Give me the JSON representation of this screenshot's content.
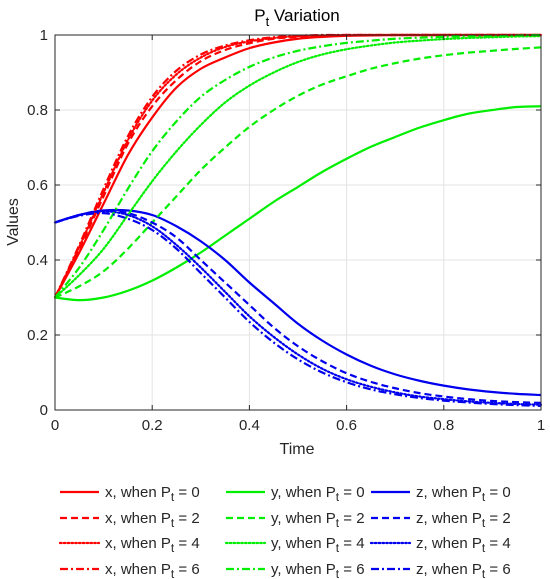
{
  "chart_data": {
    "type": "line",
    "title": {
      "main": "P",
      "sub": "t",
      "rest": " Variation"
    },
    "xlabel": "Time",
    "ylabel": "Values",
    "xlim": [
      0,
      1
    ],
    "ylim": [
      0,
      1
    ],
    "xticks": [
      0,
      0.2,
      0.4,
      0.6,
      0.8,
      1
    ],
    "xtick_labels": [
      "0",
      "0.2",
      "0.4",
      "0.6",
      "0.8",
      "1"
    ],
    "yticks": [
      0,
      0.2,
      0.4,
      0.6,
      0.8,
      1
    ],
    "ytick_labels": [
      "0",
      "0.2",
      "0.4",
      "0.6",
      "0.8",
      "1"
    ],
    "grid": true,
    "legend_position": "bottom",
    "x": [
      0,
      0.05,
      0.1,
      0.15,
      0.2,
      0.25,
      0.3,
      0.35,
      0.4,
      0.45,
      0.5,
      0.55,
      0.6,
      0.65,
      0.7,
      0.75,
      0.8,
      0.85,
      0.9,
      0.95,
      1
    ],
    "series": [
      {
        "var": "x",
        "pt": "0",
        "color": "#ff0000",
        "dash": "solid",
        "values": [
          0.3,
          0.42,
          0.55,
          0.68,
          0.78,
          0.86,
          0.91,
          0.94,
          0.965,
          0.98,
          0.99,
          0.995,
          0.998,
          0.999,
          1.0,
          1.0,
          1.0,
          1.0,
          1.0,
          1.0,
          1.0
        ]
      },
      {
        "var": "y",
        "pt": "0",
        "color": "#00ee00",
        "dash": "solid",
        "values": [
          0.3,
          0.293,
          0.3,
          0.318,
          0.345,
          0.38,
          0.42,
          0.465,
          0.51,
          0.555,
          0.595,
          0.635,
          0.67,
          0.702,
          0.728,
          0.753,
          0.773,
          0.79,
          0.8,
          0.808,
          0.81
        ]
      },
      {
        "var": "z",
        "pt": "0",
        "color": "#0000ee",
        "dash": "solid",
        "values": [
          0.5,
          0.52,
          0.532,
          0.532,
          0.52,
          0.49,
          0.45,
          0.4,
          0.34,
          0.285,
          0.23,
          0.185,
          0.148,
          0.118,
          0.095,
          0.078,
          0.065,
          0.055,
          0.048,
          0.043,
          0.04
        ]
      },
      {
        "var": "x",
        "pt": "2",
        "color": "#ff0000",
        "dash": "dashed",
        "values": [
          0.3,
          0.43,
          0.57,
          0.71,
          0.81,
          0.88,
          0.93,
          0.96,
          0.978,
          0.99,
          0.995,
          0.998,
          1.0,
          1.0,
          1.0,
          1.0,
          1.0,
          1.0,
          1.0,
          1.0,
          1.0
        ]
      },
      {
        "var": "y",
        "pt": "2",
        "color": "#00ee00",
        "dash": "dashed",
        "values": [
          0.3,
          0.33,
          0.37,
          0.43,
          0.5,
          0.57,
          0.64,
          0.7,
          0.755,
          0.8,
          0.838,
          0.868,
          0.89,
          0.91,
          0.925,
          0.937,
          0.946,
          0.953,
          0.958,
          0.963,
          0.967
        ]
      },
      {
        "var": "z",
        "pt": "2",
        "color": "#0000ee",
        "dash": "dashed",
        "values": [
          0.5,
          0.52,
          0.532,
          0.525,
          0.5,
          0.46,
          0.4,
          0.34,
          0.28,
          0.22,
          0.17,
          0.13,
          0.098,
          0.075,
          0.058,
          0.045,
          0.036,
          0.029,
          0.024,
          0.021,
          0.019
        ]
      },
      {
        "var": "x",
        "pt": "4",
        "color": "#ff0000",
        "dash": "dotted",
        "values": [
          0.3,
          0.435,
          0.58,
          0.72,
          0.825,
          0.895,
          0.94,
          0.968,
          0.983,
          0.992,
          0.997,
          0.999,
          1.0,
          1.0,
          1.0,
          1.0,
          1.0,
          1.0,
          1.0,
          1.0,
          1.0
        ]
      },
      {
        "var": "y",
        "pt": "4",
        "color": "#00ee00",
        "dash": "dotted",
        "values": [
          0.3,
          0.36,
          0.43,
          0.52,
          0.61,
          0.69,
          0.76,
          0.82,
          0.865,
          0.9,
          0.928,
          0.948,
          0.962,
          0.972,
          0.98,
          0.985,
          0.989,
          0.992,
          0.994,
          0.996,
          0.997
        ]
      },
      {
        "var": "z",
        "pt": "4",
        "color": "#0000ee",
        "dash": "dotted",
        "values": [
          0.5,
          0.52,
          0.53,
          0.52,
          0.49,
          0.44,
          0.38,
          0.315,
          0.25,
          0.195,
          0.148,
          0.11,
          0.082,
          0.062,
          0.047,
          0.036,
          0.029,
          0.023,
          0.019,
          0.016,
          0.014
        ]
      },
      {
        "var": "x",
        "pt": "6",
        "color": "#ff0000",
        "dash": "dashdot",
        "values": [
          0.3,
          0.44,
          0.59,
          0.73,
          0.835,
          0.905,
          0.948,
          0.972,
          0.986,
          0.994,
          0.998,
          1.0,
          1.0,
          1.0,
          1.0,
          1.0,
          1.0,
          1.0,
          1.0,
          1.0,
          1.0
        ]
      },
      {
        "var": "y",
        "pt": "6",
        "color": "#00ee00",
        "dash": "dashdot",
        "values": [
          0.3,
          0.38,
          0.48,
          0.59,
          0.69,
          0.77,
          0.835,
          0.88,
          0.915,
          0.94,
          0.958,
          0.97,
          0.979,
          0.985,
          0.99,
          0.993,
          0.995,
          0.997,
          0.998,
          0.999,
          1.0
        ]
      },
      {
        "var": "z",
        "pt": "6",
        "color": "#0000ee",
        "dash": "dashdot",
        "values": [
          0.5,
          0.518,
          0.525,
          0.51,
          0.48,
          0.43,
          0.365,
          0.3,
          0.235,
          0.18,
          0.135,
          0.1,
          0.074,
          0.055,
          0.042,
          0.032,
          0.025,
          0.02,
          0.016,
          0.013,
          0.011
        ]
      }
    ],
    "legend": {
      "columns": 3,
      "label_pre": ", when ",
      "label_p": "P",
      "label_sub": "t",
      "label_eq": " = "
    }
  }
}
